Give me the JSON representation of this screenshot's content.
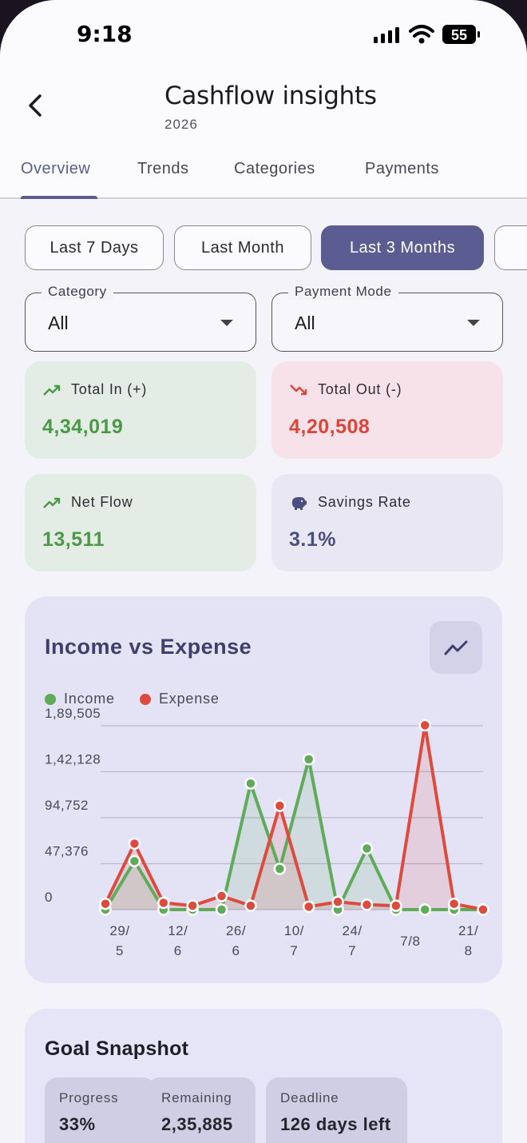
{
  "status": {
    "time": "9:18",
    "battery": "55"
  },
  "header": {
    "title": "Cashflow insights",
    "subtitle": "2026"
  },
  "tabs": [
    {
      "label": "Overview",
      "active": true
    },
    {
      "label": "Trends"
    },
    {
      "label": "Categories"
    },
    {
      "label": "Payments"
    }
  ],
  "range_chips": [
    {
      "label": "Last 7 Days"
    },
    {
      "label": "Last Month"
    },
    {
      "label": "Last 3 Months",
      "selected": true
    }
  ],
  "filters": {
    "category": {
      "label": "Category",
      "value": "All"
    },
    "payment_mode": {
      "label": "Payment Mode",
      "value": "All"
    }
  },
  "stats": {
    "total_in": {
      "label": "Total In (+)",
      "value": "4,34,019",
      "color": "#4a9a45"
    },
    "total_out": {
      "label": "Total Out (-)",
      "value": "4,20,508",
      "color": "#d9463a"
    },
    "net_flow": {
      "label": "Net Flow",
      "value": "13,511",
      "color": "#4a9a45"
    },
    "savings_rate": {
      "label": "Savings Rate",
      "value": "3.1%",
      "color": "#4c4d80"
    }
  },
  "chart": {
    "title": "Income vs Expense",
    "legend": {
      "income": "Income",
      "expense": "Expense"
    }
  },
  "chart_data": {
    "type": "line",
    "title": "Income vs Expense",
    "y_ticks": [
      "1,89,505",
      "1,42,128",
      "94,752",
      "47,376",
      "0"
    ],
    "ylim": [
      0,
      189505
    ],
    "x_tick_labels": [
      [
        "29/",
        "5"
      ],
      [
        "12/",
        "6"
      ],
      [
        "26/",
        "6"
      ],
      [
        "10/",
        "7"
      ],
      [
        "24/",
        "7"
      ],
      [
        "7/8"
      ],
      [
        "21/",
        "8"
      ]
    ],
    "x_tick_index": [
      0,
      2,
      4,
      6,
      8,
      10,
      12
    ],
    "grid": true,
    "legend_position": "top-left",
    "series": [
      {
        "name": "Income",
        "color": "#5fab59",
        "values": [
          0,
          50000,
          0,
          0,
          0,
          130000,
          42000,
          155000,
          0,
          63000,
          0,
          0,
          0,
          0
        ]
      },
      {
        "name": "Expense",
        "color": "#dd4b3e",
        "values": [
          6000,
          68000,
          7000,
          4000,
          14000,
          4000,
          107000,
          3000,
          8000,
          5000,
          4000,
          190000,
          6000,
          0
        ]
      }
    ],
    "expense_last_value": 6000
  },
  "goal": {
    "title": "Goal Snapshot",
    "progress": {
      "label": "Progress",
      "value": "33%"
    },
    "remaining": {
      "label": "Remaining",
      "value": "2,35,885"
    },
    "deadline": {
      "label": "Deadline",
      "value": "126 days left"
    }
  }
}
